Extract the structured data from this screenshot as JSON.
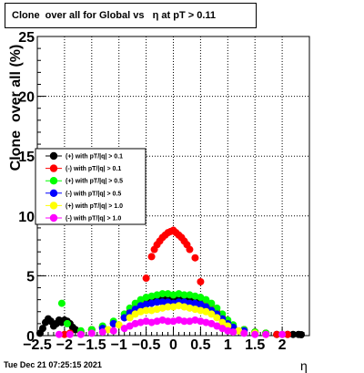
{
  "chart_data": {
    "type": "scatter",
    "title": "Clone  over all for Global vs   η at pT > 0.11",
    "xlabel": "η",
    "ylabel": "Clone  over all (%)",
    "xlim": [
      -2.5,
      2.5
    ],
    "ylim": [
      0,
      25
    ],
    "grid": true,
    "legend_position": "left",
    "x_ticks": [
      "−2.5",
      "−2",
      "−1.5",
      "−1",
      "−0.5",
      "0",
      "0.5",
      "1",
      "1.5",
      "2"
    ],
    "x_tick_values": [
      -2.5,
      -2,
      -1.5,
      -1,
      -0.5,
      0,
      0.5,
      1,
      1.5,
      2
    ],
    "y_ticks": [
      "0",
      "5",
      "10",
      "15",
      "20",
      "25"
    ],
    "y_tick_values": [
      0,
      5,
      10,
      15,
      20,
      25
    ],
    "series": [
      {
        "name": "(+) with pT/|q| > 0.1",
        "color": "#000000",
        "x": [
          -2.45,
          -2.4,
          -2.35,
          -2.3,
          -2.25,
          -2.2,
          -2.15,
          -2.1,
          -2.05,
          -2.0,
          -1.95,
          -1.9,
          -1.85,
          -1.8,
          -1.7,
          -1.5,
          -1.3,
          -1.1,
          -0.9,
          -0.8,
          -0.7,
          -0.6,
          -0.5,
          -0.4,
          -0.3,
          -0.2,
          -0.1,
          0.0,
          0.1,
          0.2,
          0.3,
          0.4,
          0.5,
          0.6,
          0.7,
          0.8,
          0.9,
          1.0,
          1.1,
          1.3,
          1.5,
          1.7,
          1.9,
          2.1,
          2.2,
          2.3,
          2.35
        ],
        "y": [
          0.2,
          0.6,
          1.1,
          1.4,
          1.2,
          0.8,
          1.0,
          1.3,
          1.1,
          1.3,
          1.2,
          1.0,
          0.7,
          0.5,
          0.2,
          0.5,
          0.7,
          1.0,
          1.5,
          2.0,
          2.4,
          2.8,
          3.0,
          3.1,
          3.0,
          3.1,
          3.2,
          3.1,
          3.2,
          3.1,
          3.0,
          3.0,
          2.9,
          2.6,
          2.2,
          1.8,
          1.4,
          1.0,
          0.7,
          0.5,
          0.3,
          0.2,
          0.1,
          0.1,
          0.1,
          0.1,
          0.0
        ]
      },
      {
        "name": "(-) with pT/|q| > 0.1",
        "color": "#ff0000",
        "x": [
          -2.0,
          -1.9,
          -1.7,
          -1.5,
          -1.3,
          -1.1,
          -0.9,
          -0.8,
          -0.7,
          -0.6,
          -0.5,
          -0.4,
          -0.35,
          -0.3,
          -0.25,
          -0.2,
          -0.15,
          -0.1,
          -0.05,
          0.0,
          0.05,
          0.1,
          0.15,
          0.2,
          0.25,
          0.3,
          0.4,
          0.5,
          0.6,
          0.7,
          0.8,
          0.9,
          1.0,
          1.1,
          1.3,
          1.5,
          1.7,
          1.9,
          2.1
        ],
        "y": [
          0.1,
          0.2,
          0.3,
          0.5,
          0.7,
          1.0,
          1.5,
          2.0,
          2.4,
          2.8,
          4.8,
          6.6,
          7.2,
          7.6,
          7.9,
          8.2,
          8.4,
          8.6,
          8.7,
          8.8,
          8.6,
          8.4,
          8.2,
          7.9,
          7.6,
          7.2,
          6.5,
          4.5,
          2.8,
          2.4,
          2.0,
          1.5,
          1.0,
          0.7,
          0.5,
          0.3,
          0.2,
          0.1,
          0.1
        ]
      },
      {
        "name": "(+) with pT/|q| > 0.5",
        "color": "#00ff00",
        "x": [
          -2.05,
          -1.95,
          -1.7,
          -1.5,
          -1.3,
          -1.1,
          -0.9,
          -0.8,
          -0.7,
          -0.6,
          -0.5,
          -0.4,
          -0.3,
          -0.2,
          -0.1,
          0.0,
          0.1,
          0.2,
          0.3,
          0.4,
          0.5,
          0.6,
          0.7,
          0.8,
          0.9,
          1.0,
          1.1,
          1.3,
          1.5,
          1.7,
          2.0
        ],
        "y": [
          2.7,
          1.0,
          0.4,
          0.5,
          0.8,
          1.2,
          1.8,
          2.3,
          2.7,
          3.0,
          3.2,
          3.3,
          3.4,
          3.5,
          3.5,
          3.4,
          3.5,
          3.4,
          3.4,
          3.3,
          3.2,
          3.0,
          2.7,
          2.3,
          1.8,
          1.3,
          0.9,
          0.5,
          0.3,
          0.2,
          0.1
        ]
      },
      {
        "name": "(-) with pT/|q| > 0.5",
        "color": "#0000ff",
        "x": [
          -1.3,
          -1.1,
          -0.9,
          -0.8,
          -0.7,
          -0.6,
          -0.5,
          -0.4,
          -0.3,
          -0.2,
          -0.1,
          0.0,
          0.1,
          0.2,
          0.3,
          0.4,
          0.5,
          0.6,
          0.7,
          0.8,
          0.9,
          1.0,
          1.1,
          1.3
        ],
        "y": [
          0.6,
          1.0,
          1.5,
          1.9,
          2.2,
          2.5,
          2.6,
          2.7,
          2.8,
          2.8,
          2.8,
          2.7,
          2.8,
          2.8,
          2.7,
          2.7,
          2.6,
          2.4,
          2.1,
          1.8,
          1.4,
          1.0,
          0.7,
          0.4
        ]
      },
      {
        "name": "(+) with pT/|q| > 1.0",
        "color": "#ffff00",
        "x": [
          -1.2,
          -1.0,
          -0.8,
          -0.7,
          -0.6,
          -0.5,
          -0.4,
          -0.3,
          -0.2,
          -0.1,
          0.0,
          0.1,
          0.2,
          0.3,
          0.4,
          0.5,
          0.6,
          0.7,
          0.8,
          0.9,
          1.0,
          1.2,
          1.5,
          1.7
        ],
        "y": [
          0.5,
          0.9,
          1.5,
          1.8,
          2.0,
          2.1,
          2.1,
          2.2,
          2.3,
          2.4,
          2.4,
          2.5,
          2.4,
          2.3,
          2.2,
          2.1,
          2.0,
          1.8,
          1.5,
          1.1,
          0.8,
          0.4,
          0.2,
          0.1
        ]
      },
      {
        "name": "(-) with pT/|q| > 1.0",
        "color": "#ff00ff",
        "x": [
          -2.1,
          -1.9,
          -1.7,
          -1.5,
          -1.3,
          -1.1,
          -0.9,
          -0.8,
          -0.7,
          -0.6,
          -0.5,
          -0.4,
          -0.3,
          -0.2,
          -0.1,
          0.0,
          0.1,
          0.2,
          0.3,
          0.4,
          0.5,
          0.6,
          0.7,
          0.8,
          0.9,
          1.0,
          1.1,
          1.3,
          1.5,
          1.7,
          2.0
        ],
        "y": [
          0.1,
          0.1,
          0.1,
          0.2,
          0.3,
          0.4,
          0.6,
          0.8,
          1.0,
          1.1,
          1.2,
          1.1,
          1.2,
          1.3,
          1.2,
          1.2,
          1.3,
          1.2,
          1.2,
          1.3,
          1.2,
          1.1,
          1.0,
          0.8,
          0.6,
          0.4,
          0.3,
          0.2,
          0.1,
          0.1,
          0.1
        ]
      }
    ]
  },
  "footer": {
    "datestamp": "Tue Dec 21 07:25:15 2021"
  }
}
